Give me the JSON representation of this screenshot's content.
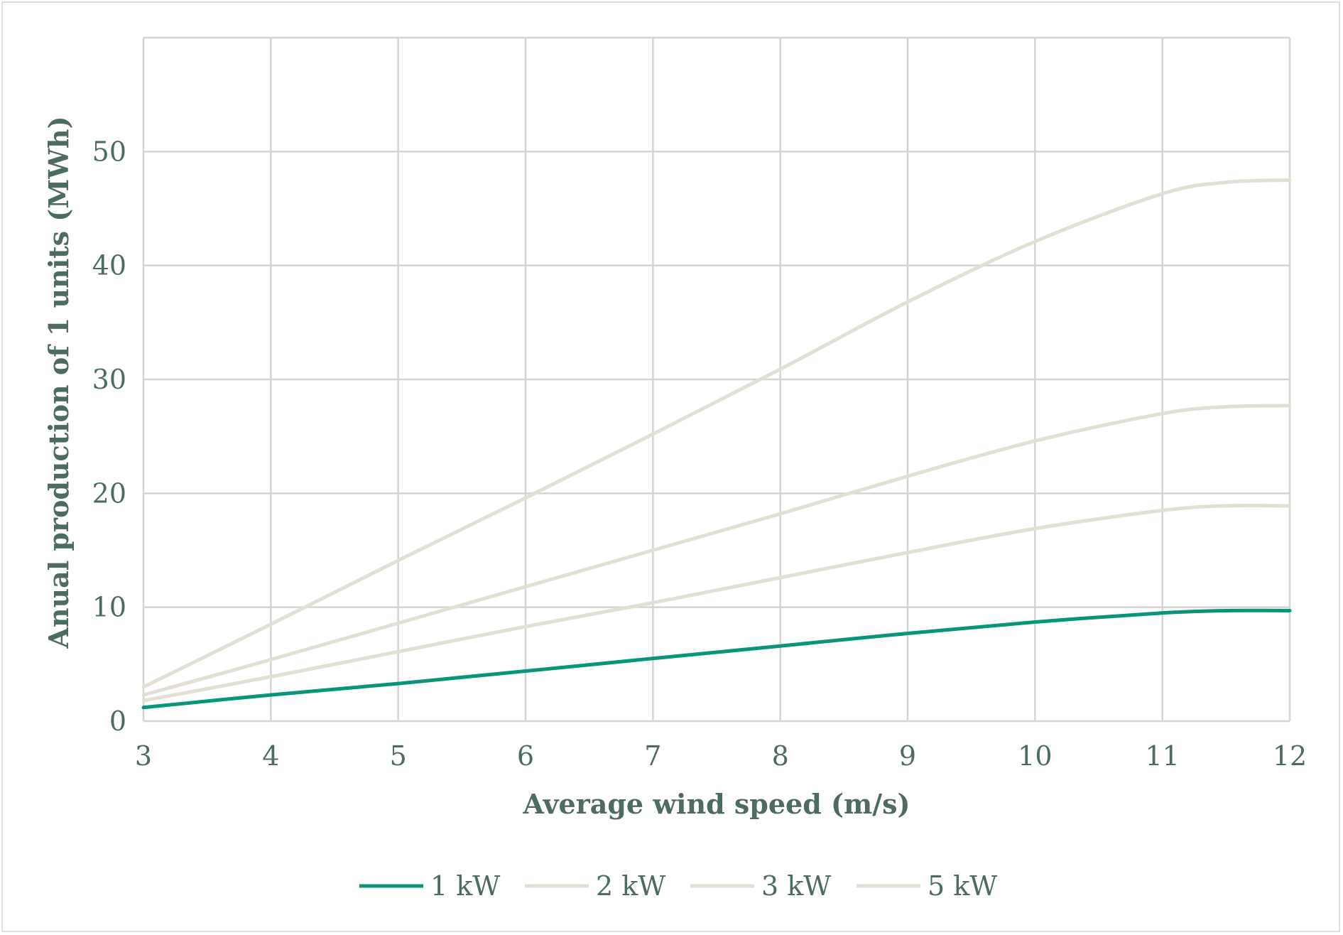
{
  "chart_data": {
    "type": "line",
    "xlabel": "Average wind speed (m/s)",
    "ylabel": "Anual production of 1 units (MWh)",
    "xlim": [
      3,
      12
    ],
    "ylim": [
      0,
      60
    ],
    "x_ticks": [
      "3",
      "4",
      "5",
      "6",
      "7",
      "8",
      "9",
      "10",
      "11",
      "12"
    ],
    "y_ticks": [
      "0",
      "10",
      "20",
      "30",
      "40",
      "50"
    ],
    "grid": true,
    "legend_position": "bottom",
    "x": [
      3,
      4,
      5,
      6,
      7,
      8,
      9,
      10,
      11,
      11.5,
      12
    ],
    "series": [
      {
        "name": "1 kW",
        "color": "#08957a",
        "values": [
          1.2,
          2.3,
          3.3,
          4.4,
          5.5,
          6.6,
          7.7,
          8.7,
          9.5,
          9.7,
          9.7
        ]
      },
      {
        "name": "2 kW",
        "color": "#e4dfd5",
        "values": [
          1.8,
          3.9,
          6.1,
          8.3,
          10.4,
          12.6,
          14.8,
          16.9,
          18.5,
          18.9,
          18.9
        ]
      },
      {
        "name": "3 kW",
        "color": "#e4dfd5",
        "values": [
          2.3,
          5.4,
          8.6,
          11.8,
          15.0,
          18.2,
          21.5,
          24.6,
          27.0,
          27.6,
          27.7
        ]
      },
      {
        "name": "5 kW",
        "color": "#e4dfd5",
        "values": [
          3.0,
          8.5,
          14.1,
          19.6,
          25.2,
          30.9,
          36.8,
          42.1,
          46.3,
          47.3,
          47.5
        ]
      }
    ]
  }
}
